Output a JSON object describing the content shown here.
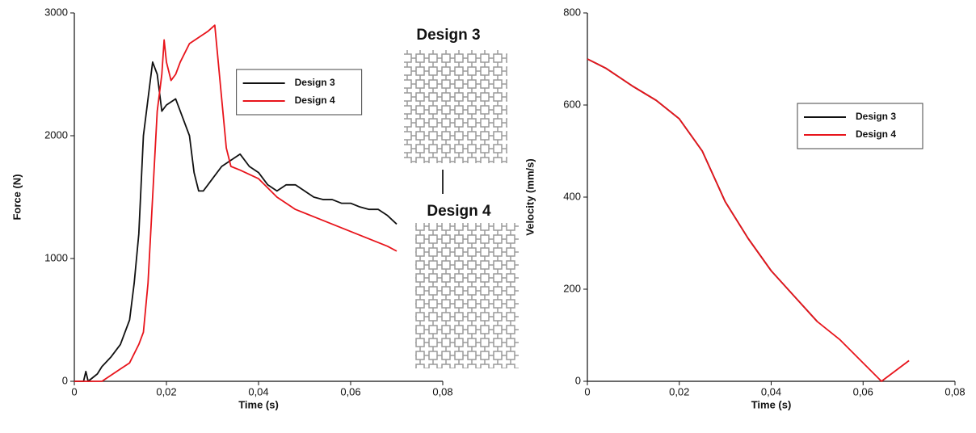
{
  "chart_data": [
    {
      "type": "line",
      "xlabel": "Time (s)",
      "ylabel": "Force (N)",
      "xlim": [
        0,
        0.08
      ],
      "ylim": [
        0,
        3000
      ],
      "xticks": [
        0,
        {
          "value": 0.02,
          "label": "0,02"
        },
        {
          "value": 0.04,
          "label": "0,04"
        },
        {
          "value": 0.06,
          "label": "0,06"
        },
        {
          "value": 0.08,
          "label": "0,08"
        }
      ],
      "yticks": [
        0,
        1000,
        2000,
        3000
      ],
      "legend": "upper center",
      "annotations": [
        "Design 3",
        "Design 4"
      ],
      "series": [
        {
          "name": "Design 3",
          "color": "#111111",
          "x": [
            0,
            0.002,
            0.0025,
            0.003,
            0.005,
            0.006,
            0.008,
            0.01,
            0.012,
            0.013,
            0.014,
            0.015,
            0.016,
            0.017,
            0.018,
            0.019,
            0.02,
            0.022,
            0.023,
            0.025,
            0.026,
            0.027,
            0.028,
            0.03,
            0.032,
            0.034,
            0.036,
            0.038,
            0.04,
            0.042,
            0.044,
            0.046,
            0.048,
            0.05,
            0.052,
            0.054,
            0.056,
            0.058,
            0.06,
            0.062,
            0.064,
            0.066,
            0.068,
            0.07
          ],
          "values": [
            0,
            0,
            80,
            0,
            60,
            120,
            200,
            300,
            500,
            800,
            1200,
            2000,
            2300,
            2600,
            2500,
            2200,
            2250,
            2300,
            2200,
            2000,
            1700,
            1550,
            1550,
            1650,
            1750,
            1800,
            1850,
            1750,
            1700,
            1600,
            1550,
            1600,
            1600,
            1550,
            1500,
            1480,
            1480,
            1450,
            1450,
            1420,
            1400,
            1400,
            1350,
            1280
          ]
        },
        {
          "name": "Design 4",
          "color": "#e8141b",
          "x": [
            0,
            0.006,
            0.008,
            0.01,
            0.012,
            0.014,
            0.015,
            0.016,
            0.017,
            0.018,
            0.019,
            0.0195,
            0.02,
            0.021,
            0.022,
            0.023,
            0.025,
            0.027,
            0.029,
            0.0305,
            0.031,
            0.032,
            0.033,
            0.034,
            0.036,
            0.04,
            0.044,
            0.048,
            0.052,
            0.056,
            0.06,
            0.064,
            0.068,
            0.07
          ],
          "values": [
            0,
            0,
            50,
            100,
            150,
            300,
            400,
            800,
            1500,
            2200,
            2500,
            2780,
            2600,
            2450,
            2500,
            2600,
            2750,
            2800,
            2850,
            2900,
            2700,
            2300,
            1900,
            1750,
            1720,
            1650,
            1500,
            1400,
            1340,
            1280,
            1220,
            1160,
            1100,
            1060
          ]
        }
      ]
    },
    {
      "type": "line",
      "xlabel": "Time (s)",
      "ylabel": "Velocity (mm/s)",
      "xlim": [
        0,
        0.08
      ],
      "ylim": [
        0,
        800
      ],
      "xticks": [
        0,
        {
          "value": 0.02,
          "label": "0,02"
        },
        {
          "value": 0.04,
          "label": "0,04"
        },
        {
          "value": 0.06,
          "label": "0,06"
        },
        {
          "value": 0.08,
          "label": "0,08"
        }
      ],
      "yticks": [
        0,
        200,
        400,
        600,
        800
      ],
      "legend": "center right",
      "series": [
        {
          "name": "Design 3",
          "color": "#111111",
          "x": [
            0,
            0.002,
            0.004,
            0.01,
            0.015,
            0.02,
            0.025,
            0.03,
            0.035,
            0.04,
            0.045,
            0.05
          ],
          "values": [
            700,
            690,
            680,
            640,
            610,
            570,
            500,
            390,
            310,
            240,
            185,
            130
          ]
        },
        {
          "name": "Design 4",
          "color": "#e8141b",
          "x": [
            0,
            0.002,
            0.004,
            0.01,
            0.015,
            0.02,
            0.025,
            0.03,
            0.035,
            0.04,
            0.045,
            0.05,
            0.055,
            0.06,
            0.064,
            0.07
          ],
          "values": [
            700,
            690,
            680,
            640,
            610,
            570,
            500,
            390,
            310,
            240,
            185,
            130,
            90,
            40,
            0,
            45
          ]
        }
      ]
    }
  ]
}
